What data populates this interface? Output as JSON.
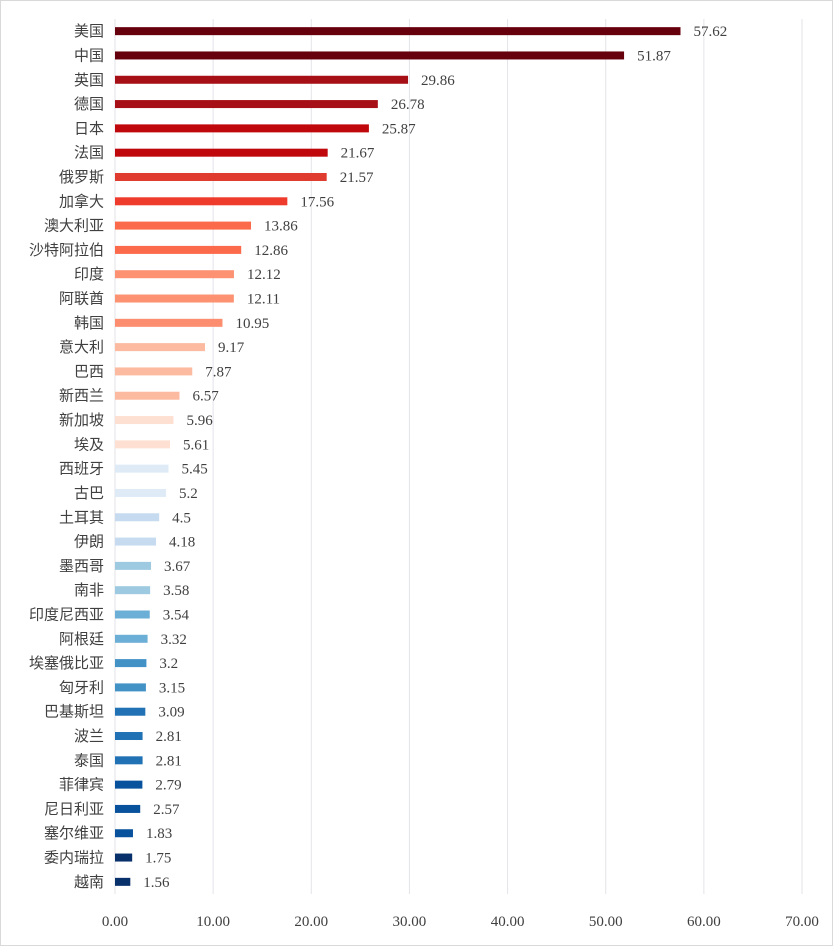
{
  "chart_data": {
    "type": "bar",
    "orientation": "horizontal",
    "title": "",
    "xlabel": "",
    "ylabel": "",
    "xlim": [
      0,
      70
    ],
    "x_ticks": [
      "0.00",
      "10.00",
      "20.00",
      "30.00",
      "40.00",
      "50.00",
      "60.00",
      "70.00"
    ],
    "grid": "vertical",
    "categories": [
      "美国",
      "中国",
      "英国",
      "德国",
      "日本",
      "法国",
      "俄罗斯",
      "加拿大",
      "澳大利亚",
      "沙特阿拉伯",
      "印度",
      "阿联酋",
      "韩国",
      "意大利",
      "巴西",
      "新西兰",
      "新加坡",
      "埃及",
      "西班牙",
      "古巴",
      "土耳其",
      "伊朗",
      "墨西哥",
      "南非",
      "印度尼西亚",
      "阿根廷",
      "埃塞俄比亚",
      "匈牙利",
      "巴基斯坦",
      "波兰",
      "泰国",
      "菲律宾",
      "尼日利亚",
      "塞尔维亚",
      "委内瑞拉",
      "越南"
    ],
    "values": [
      57.62,
      51.87,
      29.86,
      26.78,
      25.87,
      21.67,
      21.57,
      17.56,
      13.86,
      12.86,
      12.12,
      12.11,
      10.95,
      9.17,
      7.87,
      6.57,
      5.96,
      5.61,
      5.45,
      5.2,
      4.5,
      4.18,
      3.67,
      3.58,
      3.54,
      3.32,
      3.2,
      3.15,
      3.09,
      2.81,
      2.81,
      2.79,
      2.57,
      1.83,
      1.75,
      1.56
    ],
    "value_labels": [
      "57.62",
      "51.87",
      "29.86",
      "26.78",
      "25.87",
      "21.67",
      "21.57",
      "17.56",
      "13.86",
      "12.86",
      "12.12",
      "12.11",
      "10.95",
      "9.17",
      "7.87",
      "6.57",
      "5.96",
      "5.61",
      "5.45",
      "5.2",
      "4.5",
      "4.18",
      "3.67",
      "3.58",
      "3.54",
      "3.32",
      "3.2",
      "3.15",
      "3.09",
      "2.81",
      "2.81",
      "2.79",
      "2.57",
      "1.83",
      "1.75",
      "1.56"
    ],
    "bar_colors": [
      "#67000d",
      "#67000d",
      "#a50f15",
      "#a50f15",
      "#c0070c",
      "#c0070c",
      "#e03b2f",
      "#ef3b2c",
      "#fb6a4a",
      "#fb6a4a",
      "#fc9272",
      "#fc9272",
      "#fc8d6e",
      "#fcbba1",
      "#fcbba1",
      "#fcbba1",
      "#fee0d2",
      "#fee0d2",
      "#deebf7",
      "#deebf7",
      "#c6dbef",
      "#c6dbef",
      "#9ecae1",
      "#9ecae1",
      "#6baed6",
      "#6baed6",
      "#4292c6",
      "#4292c6",
      "#2171b5",
      "#2171b5",
      "#2171b5",
      "#08519c",
      "#08519c",
      "#08519c",
      "#08306b",
      "#08306b"
    ]
  }
}
